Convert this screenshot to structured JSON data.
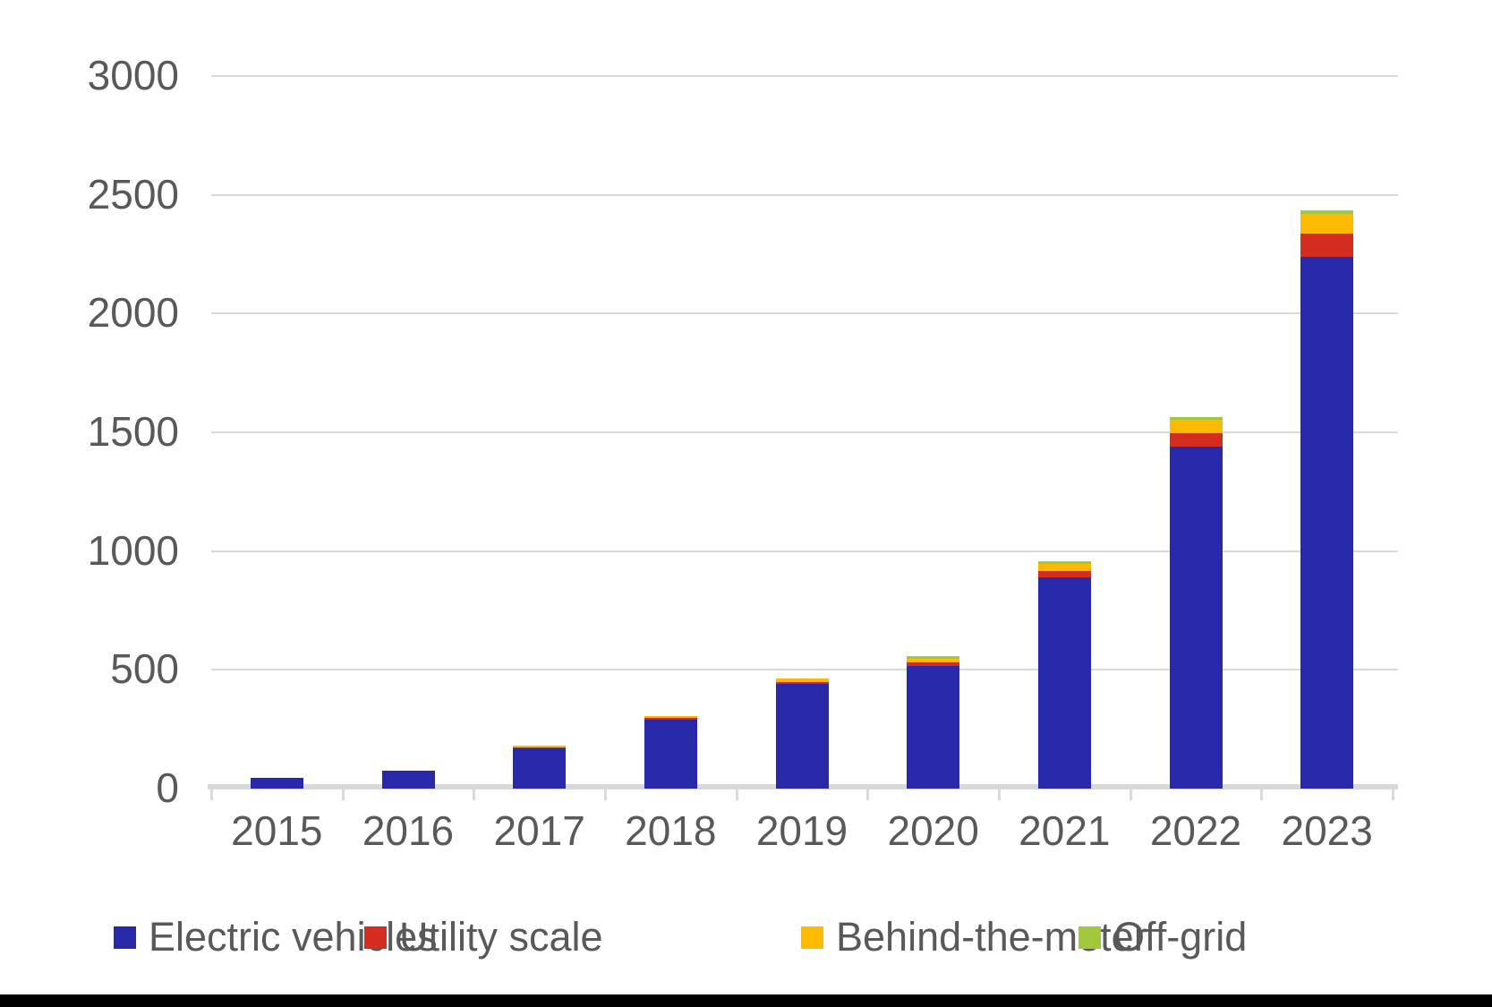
{
  "chart_data": {
    "type": "bar",
    "stacked": true,
    "title": "",
    "xlabel": "",
    "ylabel": "",
    "categories": [
      "2015",
      "2016",
      "2017",
      "2018",
      "2019",
      "2020",
      "2021",
      "2022",
      "2023"
    ],
    "series": [
      {
        "name": "Electric vehicles",
        "color": "#2729aa",
        "values": [
          45,
          75,
          170,
          290,
          440,
          515,
          890,
          1440,
          2240
        ]
      },
      {
        "name": "Utility scale",
        "color": "#d42d20",
        "values": [
          0,
          0,
          5,
          8,
          10,
          16,
          27,
          58,
          98
        ]
      },
      {
        "name": "Behind-the-meter",
        "color": "#ffb900",
        "values": [
          0,
          0,
          6,
          9,
          15,
          16,
          30,
          54,
          80
        ]
      },
      {
        "name": "Off-grid",
        "color": "#a2c83b",
        "values": [
          0,
          0,
          0,
          0,
          0,
          11,
          11,
          13,
          15
        ]
      }
    ],
    "ylim": [
      0,
      3000
    ],
    "yticks": [
      0,
      500,
      1000,
      1500,
      2000,
      2500,
      3000
    ],
    "grid": "horizontal",
    "gridline_color": "#d9d9d9",
    "axis_text_color": "#595959",
    "legend_position": "bottom"
  }
}
